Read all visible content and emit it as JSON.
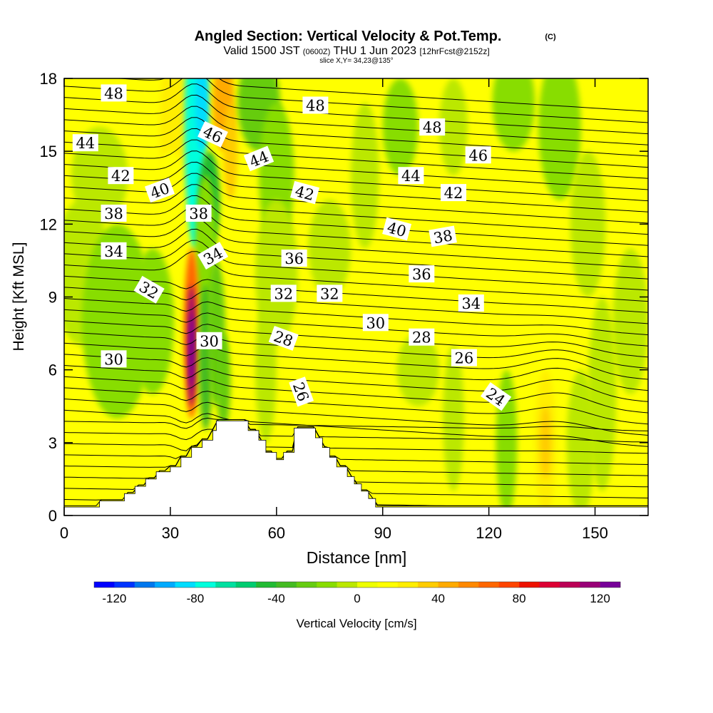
{
  "chart_data": {
    "type": "heatmap",
    "title": "Angled Section: Vertical Velocity & Pot.Temp.",
    "title_mark": "(C)",
    "subtitle": {
      "part1": "Valid 1500 JST",
      "part2": "(0600Z)",
      "part3": "THU 1 Jun 2023",
      "part4": "[12hrFcst@2152z]"
    },
    "slice_label": "slice X,Y= 34,23@135°",
    "xlabel": "Distance [nm]",
    "ylabel": "Height [Kft MSL]",
    "xlim": [
      0,
      165
    ],
    "ylim": [
      0,
      18
    ],
    "xticks": [
      "0",
      "30",
      "60",
      "90",
      "120",
      "150"
    ],
    "yticks": [
      "0",
      "3",
      "6",
      "9",
      "12",
      "15",
      "18"
    ],
    "colorbar": {
      "label": "Vertical Velocity [cm/s]",
      "range": [
        -130,
        130
      ],
      "tick_values": [
        -120,
        -80,
        -40,
        0,
        40,
        80,
        120
      ],
      "tick_labels": [
        "-120",
        "-80",
        "-40",
        "0",
        "40",
        "80",
        "120"
      ],
      "colors": [
        "#0000ff",
        "#0033ff",
        "#0077ee",
        "#00aaff",
        "#00ddff",
        "#00ffdd",
        "#00e0a0",
        "#00cc70",
        "#22bb33",
        "#44bb22",
        "#66cc11",
        "#88dd00",
        "#bbe800",
        "#eeff00",
        "#ffff00",
        "#ffee00",
        "#ffcc00",
        "#ffaa00",
        "#ff8800",
        "#ff6600",
        "#ff4400",
        "#ee1100",
        "#dd0033",
        "#bb0055",
        "#990077",
        "#770099"
      ]
    },
    "isentropes": {
      "name": "Pot.Temp.",
      "labels": [
        {
          "text": "48",
          "x": 14,
          "y": 17.4,
          "angle": 0
        },
        {
          "text": "44",
          "x": 6,
          "y": 15.35,
          "angle": 0
        },
        {
          "text": "42",
          "x": 16,
          "y": 14.0,
          "angle": 0
        },
        {
          "text": "40",
          "x": 27,
          "y": 13.4,
          "angle": 20
        },
        {
          "text": "38",
          "x": 14,
          "y": 12.45,
          "angle": 0
        },
        {
          "text": "34",
          "x": 14,
          "y": 10.9,
          "angle": 0
        },
        {
          "text": "32",
          "x": 24,
          "y": 9.3,
          "angle": -30
        },
        {
          "text": "30",
          "x": 14,
          "y": 6.45,
          "angle": 0
        },
        {
          "text": "46",
          "x": 42,
          "y": 15.7,
          "angle": -25
        },
        {
          "text": "38",
          "x": 38,
          "y": 12.45,
          "angle": 0
        },
        {
          "text": "34",
          "x": 42,
          "y": 10.7,
          "angle": 30
        },
        {
          "text": "30",
          "x": 41,
          "y": 7.2,
          "angle": 0
        },
        {
          "text": "44",
          "x": 55,
          "y": 14.7,
          "angle": 22
        },
        {
          "text": "48",
          "x": 71,
          "y": 16.9,
          "angle": 0
        },
        {
          "text": "42",
          "x": 68,
          "y": 13.3,
          "angle": -15
        },
        {
          "text": "36",
          "x": 65,
          "y": 10.6,
          "angle": 0
        },
        {
          "text": "32",
          "x": 62,
          "y": 9.15,
          "angle": 0
        },
        {
          "text": "32",
          "x": 75,
          "y": 9.15,
          "angle": 0
        },
        {
          "text": "28",
          "x": 62,
          "y": 7.3,
          "angle": -20
        },
        {
          "text": "26",
          "x": 67,
          "y": 5.1,
          "angle": -70
        },
        {
          "text": "48",
          "x": 104,
          "y": 16.0,
          "angle": 0
        },
        {
          "text": "46",
          "x": 117,
          "y": 14.85,
          "angle": 0
        },
        {
          "text": "44",
          "x": 98,
          "y": 14.0,
          "angle": 0
        },
        {
          "text": "42",
          "x": 110,
          "y": 13.3,
          "angle": 0
        },
        {
          "text": "40",
          "x": 94,
          "y": 11.8,
          "angle": -15
        },
        {
          "text": "38",
          "x": 107,
          "y": 11.5,
          "angle": 10
        },
        {
          "text": "36",
          "x": 101,
          "y": 9.95,
          "angle": 0
        },
        {
          "text": "34",
          "x": 115,
          "y": 8.75,
          "angle": 0
        },
        {
          "text": "30",
          "x": 88,
          "y": 7.95,
          "angle": 0
        },
        {
          "text": "28",
          "x": 101,
          "y": 7.35,
          "angle": 0
        },
        {
          "text": "26",
          "x": 113,
          "y": 6.5,
          "angle": 0
        },
        {
          "text": "24",
          "x": 122,
          "y": 4.9,
          "angle": -35
        }
      ]
    },
    "terrain_kft": [
      [
        0,
        0.35
      ],
      [
        10,
        0.35
      ],
      [
        10,
        0.6
      ],
      [
        17,
        0.6
      ],
      [
        17,
        0.9
      ],
      [
        20,
        0.9
      ],
      [
        20,
        1.2
      ],
      [
        23,
        1.2
      ],
      [
        23,
        1.5
      ],
      [
        26,
        1.5
      ],
      [
        26,
        1.8
      ],
      [
        30,
        1.8
      ],
      [
        30,
        2.0
      ],
      [
        33,
        2.0
      ],
      [
        33,
        2.4
      ],
      [
        36,
        2.4
      ],
      [
        36,
        2.8
      ],
      [
        39,
        2.8
      ],
      [
        39,
        3.1
      ],
      [
        42,
        3.1
      ],
      [
        42,
        3.5
      ],
      [
        43,
        3.5
      ],
      [
        43,
        3.9
      ],
      [
        52,
        3.9
      ],
      [
        52,
        3.5
      ],
      [
        55,
        3.5
      ],
      [
        55,
        3.1
      ],
      [
        57,
        3.1
      ],
      [
        57,
        2.6
      ],
      [
        60,
        2.6
      ],
      [
        60,
        2.3
      ],
      [
        62,
        2.3
      ],
      [
        62,
        2.6
      ],
      [
        65,
        2.6
      ],
      [
        65,
        3.6
      ],
      [
        71,
        3.6
      ],
      [
        71,
        3.2
      ],
      [
        73,
        3.2
      ],
      [
        73,
        2.8
      ],
      [
        75,
        2.8
      ],
      [
        75,
        2.4
      ],
      [
        77,
        2.4
      ],
      [
        77,
        2.0
      ],
      [
        80,
        2.0
      ],
      [
        80,
        1.6
      ],
      [
        82,
        1.6
      ],
      [
        82,
        1.3
      ],
      [
        84,
        1.3
      ],
      [
        84,
        1.0
      ],
      [
        86,
        1.0
      ],
      [
        86,
        0.7
      ],
      [
        88,
        0.7
      ],
      [
        88,
        0.35
      ],
      [
        165,
        0.35
      ]
    ]
  }
}
